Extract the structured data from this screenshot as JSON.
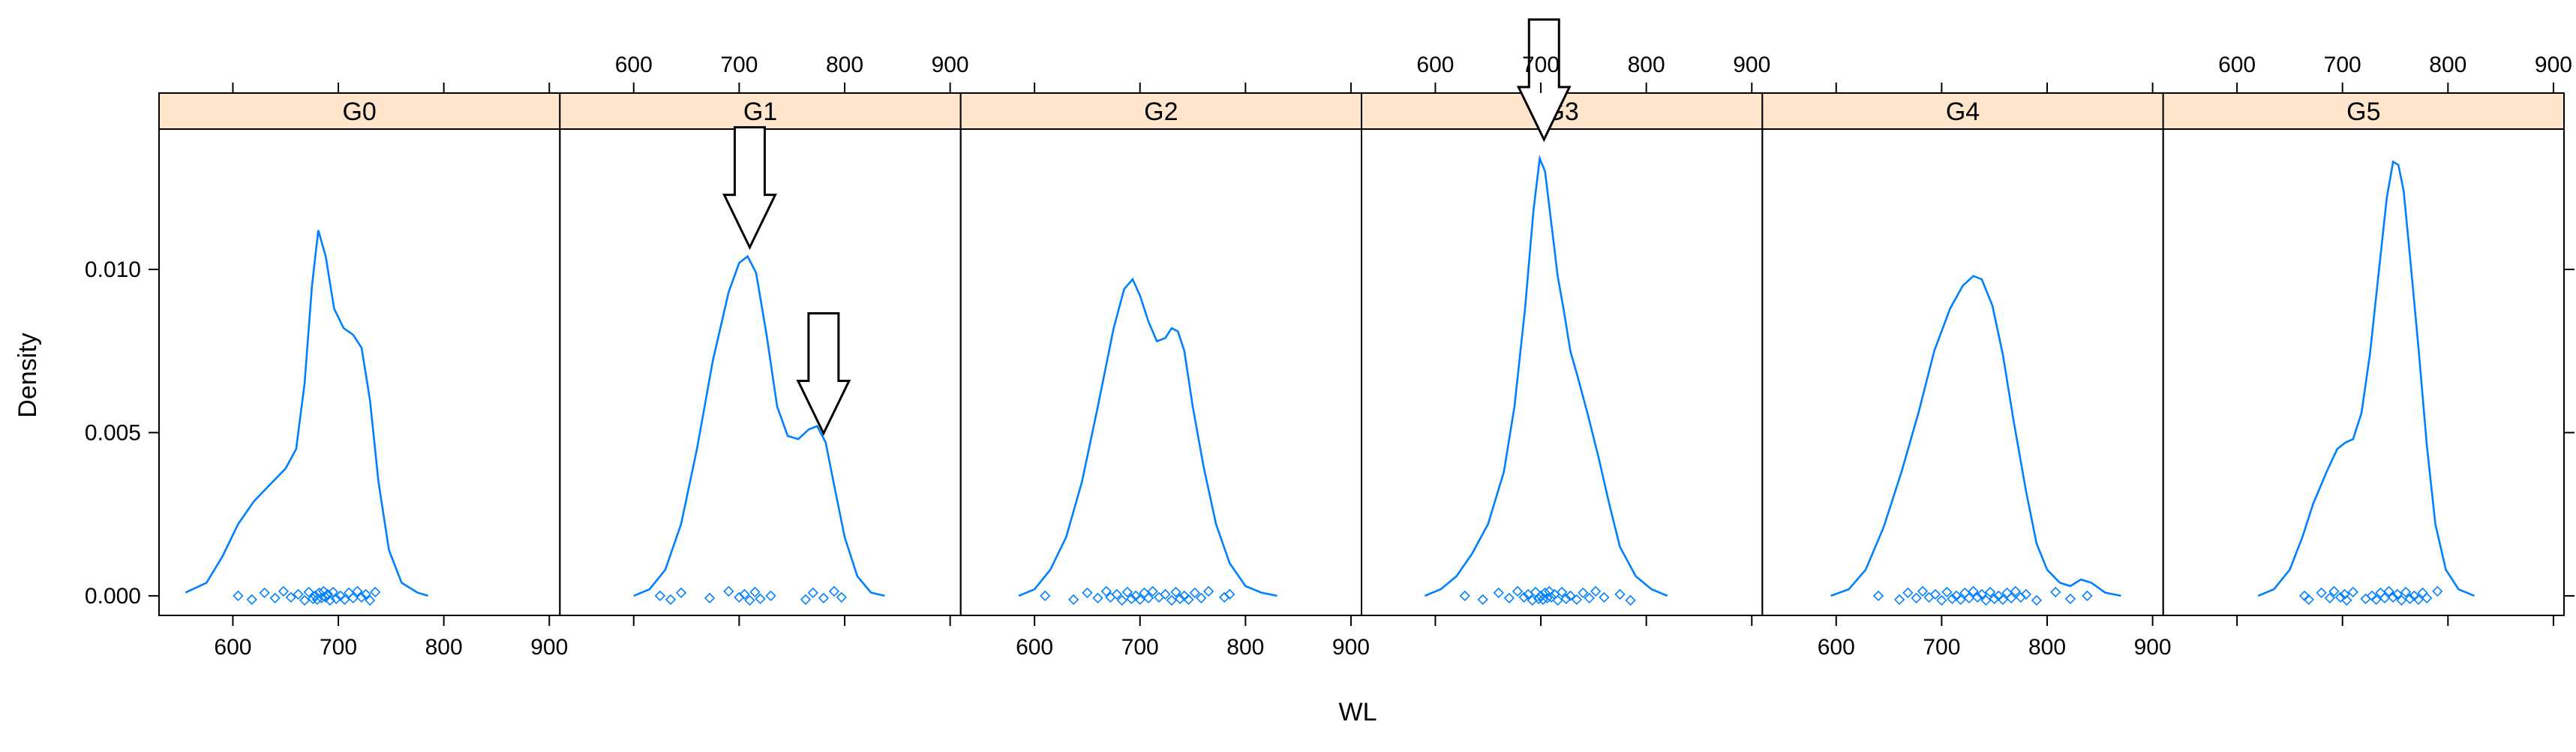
{
  "chart_data": {
    "type": "lattice-density",
    "xlabel": "WL",
    "ylabel": "Density",
    "xlim": [
      530,
      910
    ],
    "ylim": [
      -0.0006,
      0.0143
    ],
    "x_ticks": [
      600,
      700,
      800,
      900
    ],
    "x_tick_labels": [
      "600",
      "700",
      "800",
      "900"
    ],
    "y_ticks": [
      0.0,
      0.005,
      0.01
    ],
    "y_tick_labels": [
      "0.000",
      "0.005",
      "0.010"
    ],
    "strip_color": "#ffe5cc",
    "line_color": "#0080ff",
    "panels": [
      {
        "name": "G0",
        "curve": [
          [
            555,
            0.0001
          ],
          [
            575,
            0.0004
          ],
          [
            590,
            0.0012
          ],
          [
            605,
            0.0022
          ],
          [
            620,
            0.0029
          ],
          [
            635,
            0.0034
          ],
          [
            650,
            0.0039
          ],
          [
            660,
            0.0045
          ],
          [
            668,
            0.0065
          ],
          [
            675,
            0.0095
          ],
          [
            681,
            0.0112
          ],
          [
            688,
            0.0104
          ],
          [
            696,
            0.0088
          ],
          [
            705,
            0.0082
          ],
          [
            714,
            0.008
          ],
          [
            722,
            0.0076
          ],
          [
            730,
            0.006
          ],
          [
            738,
            0.0035
          ],
          [
            748,
            0.0014
          ],
          [
            760,
            0.0004
          ],
          [
            775,
            0.0001
          ],
          [
            785,
            0.0
          ]
        ],
        "points": [
          605,
          618,
          630,
          640,
          648,
          655,
          662,
          668,
          672,
          676,
          678,
          680,
          682,
          684,
          686,
          688,
          690,
          692,
          695,
          698,
          702,
          706,
          710,
          714,
          718,
          722,
          726,
          730,
          735
        ]
      },
      {
        "name": "G1",
        "curve": [
          [
            600,
            0.0
          ],
          [
            615,
            0.0002
          ],
          [
            630,
            0.0008
          ],
          [
            645,
            0.0022
          ],
          [
            660,
            0.0045
          ],
          [
            675,
            0.0072
          ],
          [
            690,
            0.0093
          ],
          [
            700,
            0.0102
          ],
          [
            708,
            0.0104
          ],
          [
            716,
            0.0099
          ],
          [
            726,
            0.008
          ],
          [
            736,
            0.0058
          ],
          [
            746,
            0.0049
          ],
          [
            756,
            0.0048
          ],
          [
            766,
            0.0051
          ],
          [
            774,
            0.0052
          ],
          [
            782,
            0.0047
          ],
          [
            790,
            0.0034
          ],
          [
            800,
            0.0018
          ],
          [
            812,
            0.0006
          ],
          [
            825,
            0.0001
          ],
          [
            838,
            0.0
          ]
        ],
        "points": [
          625,
          635,
          645,
          672,
          690,
          700,
          705,
          710,
          715,
          720,
          730,
          763,
          770,
          780,
          790,
          797
        ],
        "arrows": [
          710,
          780
        ]
      },
      {
        "name": "G2",
        "curve": [
          [
            585,
            0.0
          ],
          [
            600,
            0.0002
          ],
          [
            615,
            0.0008
          ],
          [
            630,
            0.0018
          ],
          [
            645,
            0.0035
          ],
          [
            660,
            0.0058
          ],
          [
            675,
            0.0082
          ],
          [
            685,
            0.0094
          ],
          [
            693,
            0.0097
          ],
          [
            700,
            0.0092
          ],
          [
            708,
            0.0084
          ],
          [
            716,
            0.0078
          ],
          [
            724,
            0.0079
          ],
          [
            730,
            0.0082
          ],
          [
            736,
            0.0081
          ],
          [
            742,
            0.0075
          ],
          [
            750,
            0.0058
          ],
          [
            760,
            0.004
          ],
          [
            772,
            0.0022
          ],
          [
            785,
            0.001
          ],
          [
            800,
            0.0003
          ],
          [
            815,
            0.0001
          ],
          [
            830,
            0.0
          ]
        ],
        "points": [
          610,
          637,
          650,
          660,
          668,
          672,
          678,
          683,
          688,
          692,
          696,
          700,
          704,
          708,
          712,
          718,
          724,
          730,
          734,
          738,
          742,
          746,
          752,
          758,
          765,
          780,
          785
        ]
      },
      {
        "name": "G3",
        "curve": [
          [
            590,
            0.0
          ],
          [
            605,
            0.0002
          ],
          [
            620,
            0.0006
          ],
          [
            635,
            0.0013
          ],
          [
            650,
            0.0022
          ],
          [
            665,
            0.0038
          ],
          [
            675,
            0.0058
          ],
          [
            685,
            0.0088
          ],
          [
            693,
            0.0118
          ],
          [
            699,
            0.0134
          ],
          [
            704,
            0.013
          ],
          [
            710,
            0.0114
          ],
          [
            716,
            0.0098
          ],
          [
            722,
            0.0087
          ],
          [
            728,
            0.0075
          ],
          [
            735,
            0.0067
          ],
          [
            745,
            0.0055
          ],
          [
            755,
            0.0042
          ],
          [
            765,
            0.0028
          ],
          [
            775,
            0.0015
          ],
          [
            790,
            0.0006
          ],
          [
            805,
            0.0002
          ],
          [
            820,
            0.0
          ]
        ],
        "points": [
          628,
          645,
          660,
          670,
          678,
          684,
          688,
          692,
          695,
          698,
          700,
          702,
          704,
          706,
          708,
          710,
          713,
          716,
          720,
          724,
          728,
          734,
          740,
          746,
          752,
          760,
          775,
          785
        ],
        "arrows": [
          703
        ]
      },
      {
        "name": "G4",
        "curve": [
          [
            595,
            0.0
          ],
          [
            612,
            0.0002
          ],
          [
            628,
            0.0008
          ],
          [
            645,
            0.0021
          ],
          [
            662,
            0.0038
          ],
          [
            678,
            0.0056
          ],
          [
            693,
            0.0075
          ],
          [
            708,
            0.0088
          ],
          [
            720,
            0.0095
          ],
          [
            730,
            0.0098
          ],
          [
            738,
            0.0097
          ],
          [
            748,
            0.0089
          ],
          [
            758,
            0.0074
          ],
          [
            768,
            0.0054
          ],
          [
            780,
            0.0032
          ],
          [
            790,
            0.0016
          ],
          [
            800,
            0.0008
          ],
          [
            812,
            0.0004
          ],
          [
            822,
            0.0003
          ],
          [
            832,
            0.0005
          ],
          [
            842,
            0.0004
          ],
          [
            855,
            0.0001
          ],
          [
            870,
            0.0
          ]
        ],
        "points": [
          640,
          660,
          668,
          676,
          682,
          688,
          694,
          700,
          705,
          710,
          714,
          718,
          722,
          726,
          730,
          734,
          738,
          742,
          746,
          750,
          754,
          758,
          762,
          766,
          770,
          775,
          780,
          790,
          808,
          822,
          838
        ]
      },
      {
        "name": "G5",
        "curve": [
          [
            620,
            0.0
          ],
          [
            635,
            0.0002
          ],
          [
            650,
            0.0008
          ],
          [
            662,
            0.0018
          ],
          [
            672,
            0.0028
          ],
          [
            685,
            0.0038
          ],
          [
            695,
            0.0045
          ],
          [
            703,
            0.0047
          ],
          [
            710,
            0.0048
          ],
          [
            718,
            0.0056
          ],
          [
            726,
            0.0074
          ],
          [
            734,
            0.0098
          ],
          [
            742,
            0.0122
          ],
          [
            748,
            0.0133
          ],
          [
            753,
            0.0132
          ],
          [
            758,
            0.0124
          ],
          [
            764,
            0.0104
          ],
          [
            772,
            0.0076
          ],
          [
            780,
            0.0046
          ],
          [
            788,
            0.0022
          ],
          [
            798,
            0.0008
          ],
          [
            810,
            0.0002
          ],
          [
            825,
            0.0
          ]
        ],
        "points": [
          664,
          668,
          680,
          688,
          692,
          698,
          702,
          704,
          710,
          722,
          728,
          732,
          736,
          740,
          744,
          748,
          752,
          756,
          760,
          764,
          768,
          772,
          776,
          780,
          790
        ]
      }
    ]
  }
}
